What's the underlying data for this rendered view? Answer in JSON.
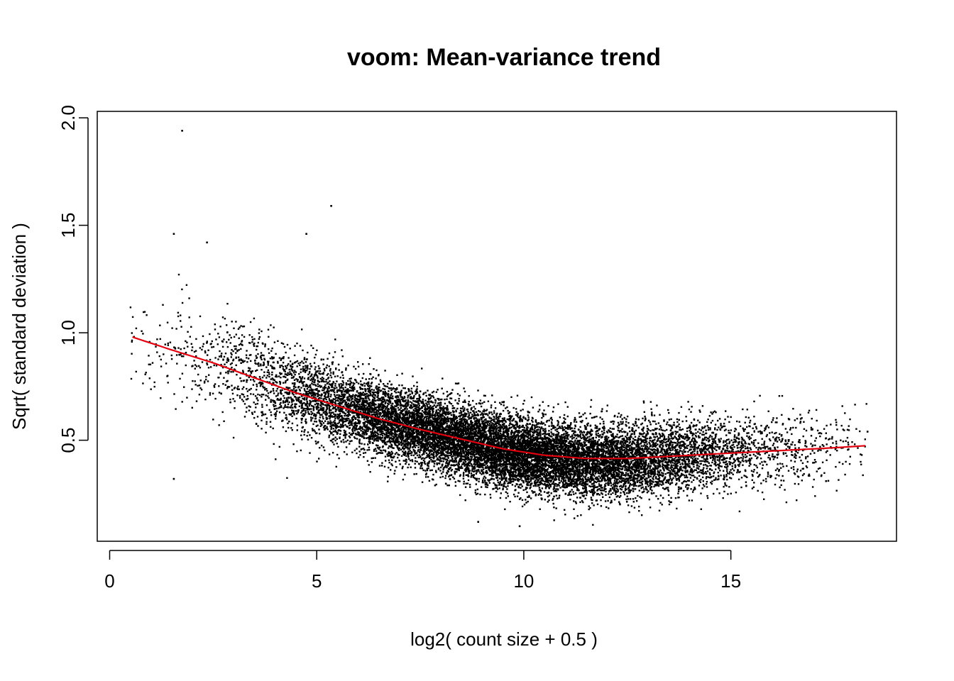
{
  "chart_data": {
    "type": "scatter",
    "title": "voom: Mean-variance trend",
    "xlabel": "log2( count size + 0.5 )",
    "ylabel": "Sqrt( standard deviation )",
    "xlim": [
      -0.3,
      19.0
    ],
    "ylim": [
      0.03,
      2.03
    ],
    "x_ticks": [
      0,
      5,
      10,
      15
    ],
    "x_tick_labels": [
      "0",
      "5",
      "10",
      "15"
    ],
    "y_ticks": [
      0.5,
      1.0,
      1.5,
      2.0
    ],
    "y_tick_labels": [
      "0.5",
      "1.0",
      "1.5",
      "2.0"
    ],
    "grid": false,
    "legend": "none",
    "point_color": "#000000",
    "trend_color": "#e0000f",
    "point_cloud": {
      "n_points": 15000,
      "x_range": [
        0.5,
        18.3
      ],
      "center_x": 9.5,
      "outliers": [
        {
          "x": 1.75,
          "y": 1.94
        },
        {
          "x": 5.35,
          "y": 1.59
        },
        {
          "x": 1.55,
          "y": 1.46
        },
        {
          "x": 4.75,
          "y": 1.46
        },
        {
          "x": 2.35,
          "y": 1.42
        },
        {
          "x": 9.9,
          "y": 0.1
        },
        {
          "x": 8.9,
          "y": 0.12
        },
        {
          "x": 18.3,
          "y": 0.54
        },
        {
          "x": 17.3,
          "y": 0.31
        },
        {
          "x": 1.55,
          "y": 0.32
        }
      ]
    },
    "series": [
      {
        "type": "line",
        "x": [
          0.55,
          1.5,
          2.5,
          3.5,
          4.5,
          5.5,
          6.5,
          7.5,
          8.5,
          9.5,
          10.5,
          11.5,
          12.5,
          13.5,
          14.5,
          15.5,
          16.5,
          17.5,
          18.3
        ],
        "values": [
          0.98,
          0.92,
          0.86,
          0.79,
          0.72,
          0.66,
          0.6,
          0.55,
          0.505,
          0.46,
          0.43,
          0.415,
          0.415,
          0.425,
          0.435,
          0.445,
          0.455,
          0.465,
          0.475
        ]
      }
    ]
  }
}
